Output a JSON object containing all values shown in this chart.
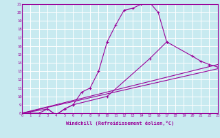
{
  "xlabel": "Windchill (Refroidissement éolien,°C)",
  "bg_color": "#c8eaf0",
  "line_color": "#990099",
  "grid_color": "#ffffff",
  "xmin": 0,
  "xmax": 23,
  "ymin": 8,
  "ymax": 21,
  "curve1_x": [
    0,
    1,
    2,
    3,
    4,
    5,
    6,
    7,
    8,
    9,
    10,
    11,
    12,
    13,
    14,
    15,
    16,
    17
  ],
  "curve1_y": [
    8,
    8,
    8,
    8.5,
    7.8,
    8.5,
    9,
    10.5,
    11,
    13,
    16.5,
    18.5,
    20.3,
    20.5,
    21,
    21.2,
    20,
    16.5
  ],
  "curve2_x": [
    0,
    3,
    4,
    5,
    6,
    10,
    15,
    17,
    20,
    21,
    22,
    23
  ],
  "curve2_y": [
    8,
    8.5,
    7.8,
    8.5,
    9,
    10,
    14.5,
    16.5,
    14.8,
    14.2,
    13.8,
    13.5
  ],
  "curve3_x": [
    0,
    23
  ],
  "curve3_y": [
    8,
    13.3
  ],
  "curve4_x": [
    0,
    23
  ],
  "curve4_y": [
    8,
    13.8
  ],
  "xtick_labels": [
    "0",
    "1",
    "2",
    "3",
    "4",
    "5",
    "6",
    "7",
    "8",
    "9",
    "10",
    "11",
    "12",
    "13",
    "14",
    "15",
    "16",
    "17",
    "18",
    "19",
    "20",
    "21",
    "22",
    "23"
  ]
}
